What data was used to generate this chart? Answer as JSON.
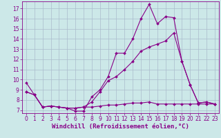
{
  "bg_color": "#cce8e8",
  "line_color": "#880088",
  "grid_color": "#aabbcc",
  "xlabel": "Windchill (Refroidissement éolien,°C)",
  "xlabel_fontsize": 6.5,
  "tick_fontsize": 5.5,
  "xlim": [
    -0.5,
    23.5
  ],
  "ylim": [
    6.7,
    17.7
  ],
  "yticks": [
    7,
    8,
    9,
    10,
    11,
    12,
    13,
    14,
    15,
    16,
    17
  ],
  "xticks": [
    0,
    1,
    2,
    3,
    4,
    5,
    6,
    7,
    8,
    9,
    10,
    11,
    12,
    13,
    14,
    15,
    16,
    17,
    18,
    19,
    20,
    21,
    22,
    23
  ],
  "line1_x": [
    0,
    1,
    2,
    3,
    4,
    5,
    6,
    7,
    8,
    9,
    10,
    11,
    12,
    13,
    14,
    15,
    16,
    17,
    18,
    19,
    20,
    21,
    22,
    23
  ],
  "line1_y": [
    9.7,
    8.5,
    7.3,
    7.4,
    7.3,
    7.2,
    6.9,
    6.9,
    8.3,
    9.0,
    10.3,
    12.6,
    12.6,
    14.0,
    16.0,
    17.4,
    15.5,
    16.2,
    16.1,
    11.8,
    9.5,
    7.7,
    7.8,
    7.6
  ],
  "line2_x": [
    0,
    1,
    2,
    3,
    4,
    5,
    6,
    7,
    8,
    9,
    10,
    11,
    12,
    13,
    14,
    15,
    16,
    17,
    18,
    19,
    20,
    21,
    22,
    23
  ],
  "line2_y": [
    8.8,
    8.5,
    7.3,
    7.4,
    7.3,
    7.2,
    7.2,
    7.3,
    7.8,
    8.8,
    9.9,
    10.3,
    11.0,
    11.8,
    12.8,
    13.2,
    13.5,
    13.8,
    14.6,
    11.8,
    9.5,
    7.7,
    7.8,
    7.6
  ],
  "line3_x": [
    0,
    1,
    2,
    3,
    4,
    5,
    6,
    7,
    8,
    9,
    10,
    11,
    12,
    13,
    14,
    15,
    16,
    17,
    18,
    19,
    20,
    21,
    22,
    23
  ],
  "line3_y": [
    8.8,
    8.5,
    7.3,
    7.4,
    7.3,
    7.2,
    7.2,
    7.3,
    7.3,
    7.4,
    7.5,
    7.5,
    7.6,
    7.7,
    7.7,
    7.8,
    7.6,
    7.6,
    7.6,
    7.6,
    7.6,
    7.6,
    7.6,
    7.6
  ]
}
